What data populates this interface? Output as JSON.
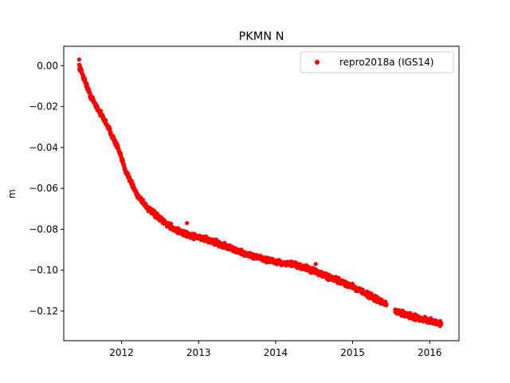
{
  "chart_data": {
    "type": "scatter",
    "title": "PKMN N",
    "xlabel": "",
    "ylabel": "m",
    "xlim": [
      2011.25,
      2016.38
    ],
    "ylim": [
      -0.1345,
      0.0095
    ],
    "x_ticks": [
      2012,
      2013,
      2014,
      2015,
      2016
    ],
    "x_tick_labels": [
      "2012",
      "2013",
      "2014",
      "2015",
      "2016"
    ],
    "y_ticks": [
      0.0,
      -0.02,
      -0.04,
      -0.06,
      -0.08,
      -0.1,
      -0.12
    ],
    "y_tick_labels": [
      "0.00",
      "−0.02",
      "−0.04",
      "−0.06",
      "−0.08",
      "−0.10",
      "−0.12"
    ],
    "legend": {
      "position": "upper right"
    },
    "grid": false,
    "series": [
      {
        "name": "repro2018a (IGS14)",
        "color": "#ff0000",
        "marker": "circle",
        "trend": {
          "x": [
            2011.45,
            2011.6,
            2011.8,
            2011.95,
            2012.05,
            2012.2,
            2012.35,
            2012.5,
            2012.65,
            2012.8,
            2013.0,
            2013.2,
            2013.4,
            2013.6,
            2013.8,
            2014.0,
            2014.2,
            2014.4,
            2014.6,
            2014.8,
            2015.0,
            2015.2,
            2015.4,
            2015.55,
            2015.8,
            2016.0,
            2016.15
          ],
          "y": [
            0.0,
            -0.015,
            -0.028,
            -0.04,
            -0.051,
            -0.063,
            -0.07,
            -0.075,
            -0.079,
            -0.082,
            -0.084,
            -0.086,
            -0.089,
            -0.092,
            -0.094,
            -0.096,
            -0.097,
            -0.099,
            -0.102,
            -0.105,
            -0.108,
            -0.112,
            -0.116,
            -0.12,
            -0.123,
            -0.125,
            -0.126
          ]
        },
        "gaps": [
          [
            2015.44,
            2015.55
          ]
        ],
        "outliers": [
          {
            "x": 2011.45,
            "y": 0.003
          },
          {
            "x": 2012.85,
            "y": -0.077
          },
          {
            "x": 2014.52,
            "y": -0.097
          }
        ]
      }
    ]
  }
}
